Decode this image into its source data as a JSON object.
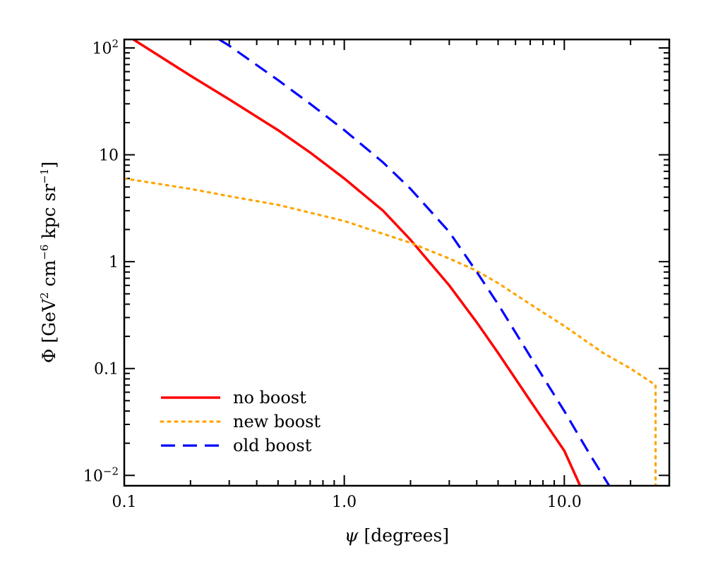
{
  "chart_data": {
    "type": "line",
    "x_scale": "log",
    "y_scale": "log",
    "xlim": [
      0.1,
      30
    ],
    "ylim": [
      0.008,
      120
    ],
    "xlabel": {
      "symbol": "ψ",
      "unit": "[degrees]"
    },
    "ylabel": {
      "symbol": "Φ",
      "open": "[GeV",
      "exp2": "2",
      "cm": " cm",
      "exp6": "−6",
      "kpc": " kpc sr",
      "exp1": "−1",
      "close": "]"
    },
    "x_ticks": [
      {
        "value": 0.1,
        "label": "0.1"
      },
      {
        "value": 1.0,
        "label": "1.0"
      },
      {
        "value": 10.0,
        "label": "10.0"
      }
    ],
    "y_ticks": [
      {
        "value": 100,
        "base": "10",
        "exp": "2"
      },
      {
        "value": 10,
        "base": "10",
        "exp": ""
      },
      {
        "value": 1,
        "base": "1",
        "exp": ""
      },
      {
        "value": 0.1,
        "base": "0.1",
        "exp": ""
      },
      {
        "value": 0.01,
        "base": "10",
        "exp": "−2"
      }
    ],
    "legend_position": "bottom-left",
    "series": [
      {
        "name": "no boost",
        "color": "#ff0000",
        "style": "solid",
        "x": [
          0.11,
          0.2,
          0.3,
          0.5,
          0.7,
          1.0,
          1.5,
          2.0,
          3.0,
          4.0,
          5.0,
          7.0,
          10.0,
          11.8
        ],
        "y": [
          120,
          55,
          33,
          17,
          10.5,
          6.0,
          3.0,
          1.6,
          0.6,
          0.27,
          0.14,
          0.05,
          0.017,
          0.008
        ]
      },
      {
        "name": "new boost",
        "color": "#ffa500",
        "style": "dotted",
        "x": [
          0.1,
          0.2,
          0.3,
          0.5,
          1.0,
          2.0,
          3.0,
          4.0,
          5.0,
          7.0,
          10.0,
          15.0,
          20.0,
          26.0,
          26.0
        ],
        "y": [
          6.0,
          4.8,
          4.1,
          3.4,
          2.4,
          1.5,
          1.07,
          0.82,
          0.63,
          0.4,
          0.25,
          0.14,
          0.1,
          0.07,
          0.008
        ]
      },
      {
        "name": "old boost",
        "color": "#0000ff",
        "style": "dashed",
        "x": [
          0.27,
          0.3,
          0.5,
          0.7,
          1.0,
          1.5,
          2.0,
          3.0,
          4.0,
          5.0,
          7.0,
          10.0,
          13.0,
          16.0
        ],
        "y": [
          120,
          105,
          50,
          30,
          17,
          8.5,
          4.8,
          1.9,
          0.8,
          0.4,
          0.13,
          0.04,
          0.016,
          0.008
        ]
      }
    ]
  }
}
